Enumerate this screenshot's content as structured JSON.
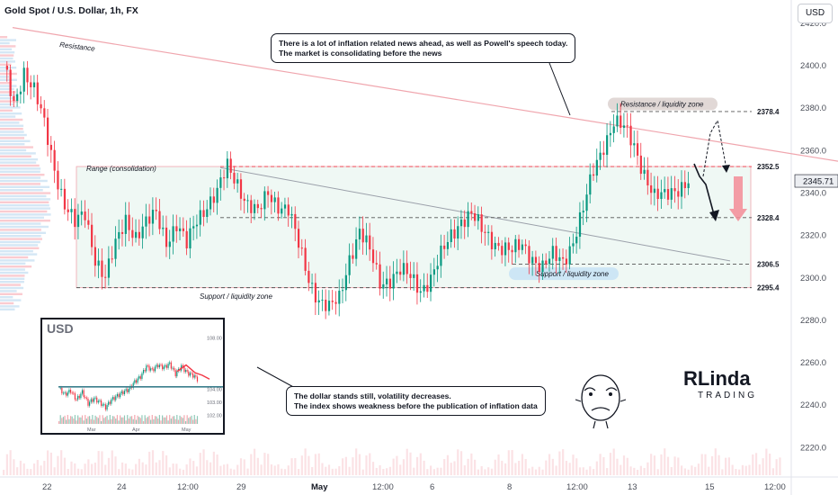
{
  "title": "Gold Spot / U.S. Dollar, 1h, FX",
  "currency_button": "USD",
  "chart_data": [
    {
      "type": "candlestick",
      "title": "Gold Spot / U.S. Dollar, 1h, FX",
      "ylim": [
        2207,
        2431
      ],
      "y_ticks": [
        2220.0,
        2240.0,
        2260.0,
        2280.0,
        2300.0,
        2320.0,
        2340.0,
        2360.0,
        2380.0,
        2400.0,
        2420.0
      ],
      "x_ticks": [
        "22",
        "24",
        "12:00",
        "29",
        "May",
        "12:00",
        "6",
        "8",
        "12:00",
        "13",
        "15",
        "12:00"
      ],
      "current_price": "2345.71",
      "close_path": [
        [
          0,
          2400
        ],
        [
          3,
          2382
        ],
        [
          6,
          2398
        ],
        [
          9,
          2388
        ],
        [
          12,
          2372
        ],
        [
          15,
          2352
        ],
        [
          18,
          2335
        ],
        [
          21,
          2325
        ],
        [
          24,
          2330
        ],
        [
          27,
          2310
        ],
        [
          30,
          2300
        ],
        [
          33,
          2315
        ],
        [
          36,
          2328
        ],
        [
          39,
          2320
        ],
        [
          42,
          2325
        ],
        [
          45,
          2330
        ],
        [
          48,
          2318
        ],
        [
          51,
          2325
        ],
        [
          54,
          2315
        ],
        [
          57,
          2328
        ],
        [
          60,
          2335
        ],
        [
          63,
          2340
        ],
        [
          66,
          2352
        ],
        [
          69,
          2345
        ],
        [
          72,
          2335
        ],
        [
          75,
          2330
        ],
        [
          78,
          2340
        ],
        [
          81,
          2335
        ],
        [
          84,
          2332
        ],
        [
          87,
          2315
        ],
        [
          90,
          2300
        ],
        [
          93,
          2290
        ],
        [
          96,
          2285
        ],
        [
          99,
          2290
        ],
        [
          102,
          2310
        ],
        [
          105,
          2322
        ],
        [
          108,
          2312
        ],
        [
          111,
          2298
        ],
        [
          114,
          2300
        ],
        [
          117,
          2303
        ],
        [
          120,
          2300
        ],
        [
          123,
          2295
        ],
        [
          126,
          2300
        ],
        [
          129,
          2310
        ],
        [
          132,
          2320
        ],
        [
          135,
          2328
        ],
        [
          138,
          2330
        ],
        [
          141,
          2322
        ],
        [
          144,
          2318
        ],
        [
          147,
          2315
        ],
        [
          150,
          2312
        ],
        [
          153,
          2315
        ],
        [
          156,
          2310
        ],
        [
          159,
          2305
        ],
        [
          162,
          2310
        ],
        [
          165,
          2308
        ],
        [
          168,
          2318
        ],
        [
          171,
          2332
        ],
        [
          174,
          2350
        ],
        [
          177,
          2363
        ],
        [
          180,
          2374
        ],
        [
          183,
          2370
        ],
        [
          186,
          2362
        ],
        [
          189,
          2350
        ],
        [
          192,
          2338
        ],
        [
          195,
          2338
        ],
        [
          198,
          2342
        ],
        [
          201,
          2345
        ],
        [
          202,
          2345.71
        ]
      ],
      "levels": [
        {
          "label": "2378.4",
          "value": 2378.4
        },
        {
          "label": "2352.5",
          "value": 2352.5
        },
        {
          "label": "2328.4",
          "value": 2328.4
        },
        {
          "label": "2306.5",
          "value": 2306.5
        },
        {
          "label": "2295.4",
          "value": 2295.4
        }
      ],
      "annotations": {
        "resistance": "Resistance",
        "range": "Range (consolidation)",
        "support_zone_left": "Support / liquidity zone",
        "resistance_zone": "Resistance / liquidity zone",
        "support_zone_right": "Support / liquidity zone"
      },
      "colors": {
        "up": "#089981",
        "down": "#f23645",
        "resistance": "#f0a6ae",
        "levels": "#131722"
      }
    },
    {
      "type": "line",
      "title": "USD",
      "ylim": [
        101.6,
        108.6
      ],
      "y_ticks": [
        "108.00",
        "104.00",
        "103.00",
        "102.00"
      ],
      "x_ticks": [
        "Mar",
        "Apr",
        "May"
      ],
      "close_path": [
        [
          0,
          104.1
        ],
        [
          4,
          103.6
        ],
        [
          8,
          103.9
        ],
        [
          12,
          103.2
        ],
        [
          16,
          103.8
        ],
        [
          20,
          102.9
        ],
        [
          24,
          103.3
        ],
        [
          28,
          103.0
        ],
        [
          32,
          102.6
        ],
        [
          36,
          103.2
        ],
        [
          40,
          103.5
        ],
        [
          44,
          103.8
        ],
        [
          48,
          104.0
        ],
        [
          52,
          104.6
        ],
        [
          56,
          105.0
        ],
        [
          60,
          105.8
        ],
        [
          64,
          105.5
        ],
        [
          68,
          105.9
        ],
        [
          72,
          105.7
        ],
        [
          76,
          106.0
        ],
        [
          80,
          105.2
        ],
        [
          84,
          105.8
        ],
        [
          88,
          105.3
        ],
        [
          92,
          105.1
        ],
        [
          95,
          104.8
        ]
      ],
      "ma_value": 104.2
    }
  ],
  "annotation_top": {
    "line1": "There is a lot of inflation related news ahead, as well as Powell's speech today.",
    "line2": "The market is consolidating before the news"
  },
  "annotation_bottom": {
    "line1": "The dollar stands still, volatility decreases.",
    "line2": "The index shows weakness before the publication of inflation data"
  },
  "logo": {
    "main": "RLinda",
    "sub": "TRADING"
  }
}
